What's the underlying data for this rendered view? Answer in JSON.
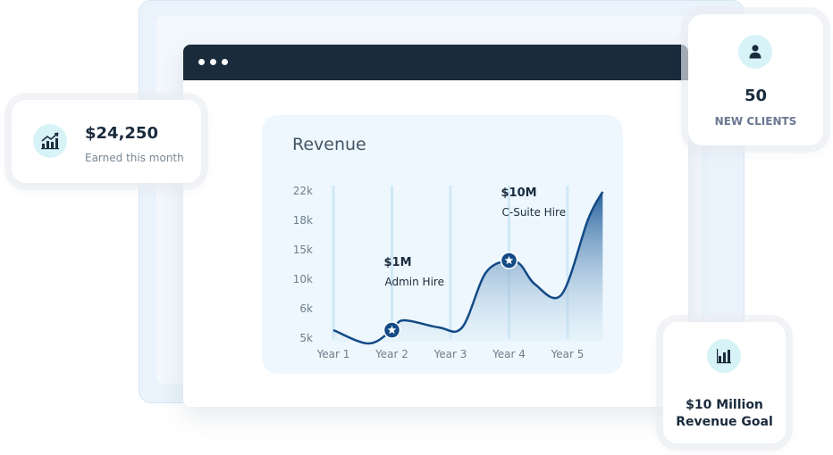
{
  "cards": {
    "earned": {
      "value": "$24,250",
      "label": "Earned this month",
      "icon": "growth-chart-icon"
    },
    "clients": {
      "value": "50",
      "label": "NEW CLIENTS",
      "icon": "user-icon"
    },
    "goal": {
      "line1": "$10 Million",
      "line2": "Revenue Goal",
      "icon": "bar-chart-icon"
    }
  },
  "colors": {
    "accent": "#134a86",
    "icon_bg": "#d7f3f8",
    "titlebar": "#1a2b3c",
    "card_bg": "#eef7fd"
  },
  "chart_data": {
    "type": "area",
    "title": "Revenue",
    "categories": [
      "Year 1",
      "Year 2",
      "Year 3",
      "Year 4",
      "Year 5"
    ],
    "y_ticks": [
      "22k",
      "18k",
      "15k",
      "10k",
      "6k",
      "5k"
    ],
    "series": [
      {
        "x": [
          1.0,
          1.6,
          2.0,
          2.2,
          2.8,
          3.2,
          3.6,
          4.0,
          4.2,
          4.45,
          4.9,
          5.35,
          5.6
        ],
        "y": [
          6.3,
          4.8,
          6.3,
          7.4,
          6.6,
          6.6,
          12.7,
          14.1,
          13.6,
          11.4,
          10.3,
          18.7,
          21.8
        ]
      }
    ],
    "markers": [
      {
        "x": 2.0,
        "y": 6.3,
        "value": "$1M",
        "label": "Admin Hire"
      },
      {
        "x": 4.0,
        "y": 14.1,
        "value": "$10M",
        "label": "C-Suite Hire"
      }
    ],
    "grid": "vertical",
    "marker_symbol": "star"
  }
}
